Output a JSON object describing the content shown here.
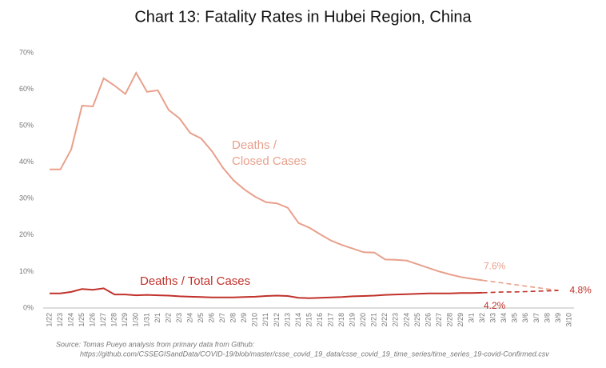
{
  "chart_data": {
    "type": "line",
    "title": "Chart 13: Fatality Rates in Hubei Region, China",
    "categories": [
      "1/22",
      "1/23",
      "1/24",
      "1/25",
      "1/26",
      "1/27",
      "1/28",
      "1/29",
      "1/30",
      "1/31",
      "2/1",
      "2/2",
      "2/3",
      "2/4",
      "2/5",
      "2/6",
      "2/7",
      "2/8",
      "2/9",
      "2/10",
      "2/11",
      "2/12",
      "2/13",
      "2/14",
      "2/15",
      "2/16",
      "2/17",
      "2/18",
      "2/19",
      "2/20",
      "2/21",
      "2/22",
      "2/23",
      "2/24",
      "2/25",
      "2/26",
      "2/27",
      "2/28",
      "2/29",
      "3/1",
      "3/2",
      "3/3",
      "3/4",
      "3/5",
      "3/6",
      "3/7",
      "3/8",
      "3/9",
      "3/10"
    ],
    "series": [
      {
        "name": "Deaths /\nClosed Cases",
        "color": "#e8a08c",
        "dashed_from": "3/2",
        "values": [
          38,
          38,
          43.5,
          55.5,
          55.3,
          63,
          61,
          58.7,
          64.5,
          59.3,
          59.7,
          54.3,
          52,
          48,
          46.5,
          43,
          38.5,
          35,
          32.5,
          30.5,
          29,
          28.7,
          27.5,
          23.3,
          22,
          20.2,
          18.5,
          17.3,
          16.3,
          15.3,
          15.2,
          13.3,
          13.2,
          13,
          12,
          11,
          10,
          9.2,
          8.5,
          8,
          7.6,
          7.2,
          6.8,
          6.4,
          6.0,
          5.6,
          5.2,
          4.8,
          null
        ],
        "value_labels": [
          null,
          null,
          null,
          null,
          null,
          null,
          null,
          null,
          null,
          null,
          null,
          null,
          null,
          null,
          null,
          null,
          null,
          null,
          null,
          null,
          null,
          null,
          null,
          null,
          null,
          null,
          null,
          null,
          null,
          null,
          null,
          null,
          null,
          null,
          null,
          null,
          null,
          null,
          null,
          null,
          "7.6%",
          null,
          null,
          null,
          null,
          null,
          null,
          null,
          null
        ]
      },
      {
        "name": "Deaths / Total Cases",
        "color": "#c0322b",
        "dashed_from": "3/2",
        "values": [
          4,
          4,
          4.4,
          5.2,
          5,
          5.4,
          3.7,
          3.7,
          3.5,
          3.6,
          3.5,
          3.4,
          3.2,
          3.1,
          3,
          2.9,
          2.9,
          2.9,
          3.0,
          3.1,
          3.3,
          3.4,
          3.3,
          2.8,
          2.7,
          2.8,
          2.9,
          3.0,
          3.2,
          3.3,
          3.4,
          3.6,
          3.7,
          3.8,
          3.9,
          4.0,
          4.0,
          4.0,
          4.1,
          4.1,
          4.2,
          4.3,
          4.4,
          4.4,
          4.5,
          4.6,
          4.7,
          4.8,
          null
        ],
        "value_labels": [
          null,
          null,
          null,
          null,
          null,
          null,
          null,
          null,
          null,
          null,
          null,
          null,
          null,
          null,
          null,
          null,
          null,
          null,
          null,
          null,
          null,
          null,
          null,
          null,
          null,
          null,
          null,
          null,
          null,
          null,
          null,
          null,
          null,
          null,
          null,
          null,
          null,
          null,
          null,
          null,
          "4.2%",
          null,
          null,
          null,
          null,
          null,
          null,
          "4.8%",
          null
        ]
      }
    ],
    "ylim": [
      0,
      70
    ],
    "yticks": [
      {
        "value": 0,
        "label": "0%"
      },
      {
        "value": 10,
        "label": "10%"
      },
      {
        "value": 20,
        "label": "20%"
      },
      {
        "value": 30,
        "label": "30%"
      },
      {
        "value": 40,
        "label": "40%"
      },
      {
        "value": 50,
        "label": "50%"
      },
      {
        "value": 60,
        "label": "60%"
      },
      {
        "value": 70,
        "label": "70%"
      }
    ],
    "source": [
      "Source: Tomas Pueyo analysis from primary data from Github:",
      "https://github.com/CSSEGISandData/COVID-19/blob/master/csse_covid_19_data/csse_covid_19_time_series/time_series_19-covid-Confirmed.csv"
    ]
  }
}
